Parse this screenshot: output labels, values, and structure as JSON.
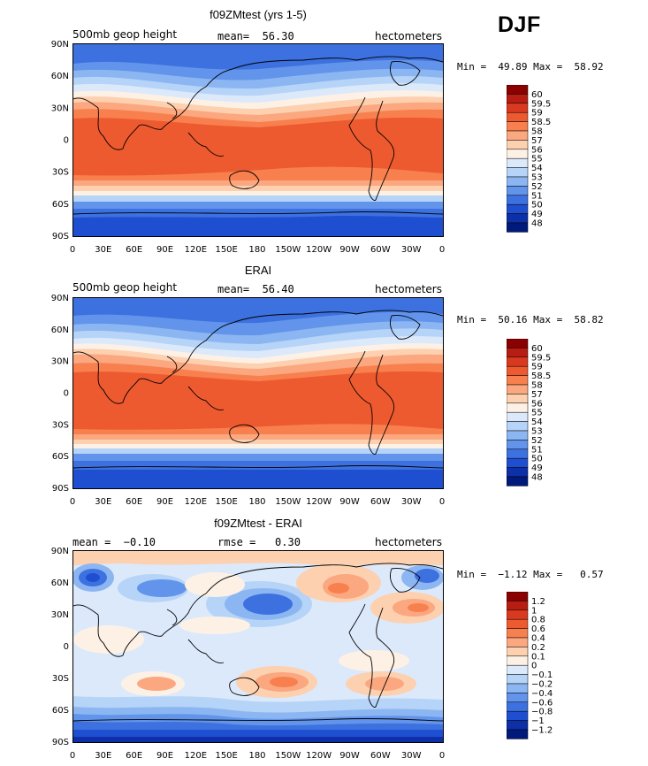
{
  "season": "DJF",
  "chart_data": [
    {
      "type": "heatmap",
      "title": "f09ZMtest (yrs 1-5)",
      "left_subtitle": "500mb geop height",
      "center_subtitle": "mean=  56.30",
      "right_subtitle": "hectometers",
      "stats": "Min =  49.89 Max =  58.92",
      "min": 49.89,
      "max": 58.92,
      "mean": 56.3,
      "y_ticks": [
        "90N",
        "60N",
        "30N",
        "0",
        "30S",
        "60S",
        "90S"
      ],
      "x_ticks": [
        "0",
        "30E",
        "60E",
        "90E",
        "120E",
        "150E",
        "180",
        "150W",
        "120W",
        "90W",
        "60W",
        "30W",
        "0"
      ],
      "colorbar": {
        "labels": [
          "60",
          "59.5",
          "59",
          "58.5",
          "58",
          "57",
          "56",
          "55",
          "54",
          "53",
          "52",
          "51",
          "50",
          "49",
          "48"
        ],
        "colors": [
          "#8b0000",
          "#b81d13",
          "#d93a1f",
          "#ee5a2f",
          "#f8804f",
          "#fba77f",
          "#fdd0b0",
          "#fdf1e6",
          "#dce9fb",
          "#b6d3f8",
          "#8cb6f2",
          "#6194ea",
          "#3d71e0",
          "#1f4fd1",
          "#0d2fa8",
          "#001a7c"
        ]
      }
    },
    {
      "type": "heatmap",
      "title": "ERAI",
      "left_subtitle": "500mb geop height",
      "center_subtitle": "mean=  56.40",
      "right_subtitle": "hectometers",
      "stats": "Min =  50.16 Max =  58.82",
      "min": 50.16,
      "max": 58.82,
      "mean": 56.4,
      "y_ticks": [
        "90N",
        "60N",
        "30N",
        "0",
        "30S",
        "60S",
        "90S"
      ],
      "x_ticks": [
        "0",
        "30E",
        "60E",
        "90E",
        "120E",
        "150E",
        "180",
        "150W",
        "120W",
        "90W",
        "60W",
        "30W",
        "0"
      ],
      "colorbar": {
        "labels": [
          "60",
          "59.5",
          "59",
          "58.5",
          "58",
          "57",
          "56",
          "55",
          "54",
          "53",
          "52",
          "51",
          "50",
          "49",
          "48"
        ],
        "colors": [
          "#8b0000",
          "#b81d13",
          "#d93a1f",
          "#ee5a2f",
          "#f8804f",
          "#fba77f",
          "#fdd0b0",
          "#fdf1e6",
          "#dce9fb",
          "#b6d3f8",
          "#8cb6f2",
          "#6194ea",
          "#3d71e0",
          "#1f4fd1",
          "#0d2fa8",
          "#001a7c"
        ]
      }
    },
    {
      "type": "heatmap",
      "title": "f09ZMtest - ERAI",
      "left_subtitle": "mean =  −0.10",
      "center_subtitle": "rmse =   0.30",
      "right_subtitle": "hectometers",
      "stats": "Min =  −1.12 Max =   0.57",
      "min": -1.12,
      "max": 0.57,
      "mean": -0.1,
      "rmse": 0.3,
      "y_ticks": [
        "90N",
        "60N",
        "30N",
        "0",
        "30S",
        "60S",
        "90S"
      ],
      "x_ticks": [
        "0",
        "30E",
        "60E",
        "90E",
        "120E",
        "150E",
        "180",
        "150W",
        "120W",
        "90W",
        "60W",
        "30W",
        "0"
      ],
      "colorbar": {
        "labels": [
          "1.2",
          "1",
          "0.8",
          "0.6",
          "0.4",
          "0.2",
          "0.1",
          "0",
          "−0.1",
          "−0.2",
          "−0.4",
          "−0.6",
          "−0.8",
          "−1",
          "−1.2"
        ],
        "colors": [
          "#8b0000",
          "#b81d13",
          "#d93a1f",
          "#ee5a2f",
          "#f8804f",
          "#fba77f",
          "#fdd0b0",
          "#fdf1e6",
          "#dce9fb",
          "#b6d3f8",
          "#8cb6f2",
          "#6194ea",
          "#3d71e0",
          "#1f4fd1",
          "#0d2fa8",
          "#001a7c"
        ]
      }
    }
  ]
}
